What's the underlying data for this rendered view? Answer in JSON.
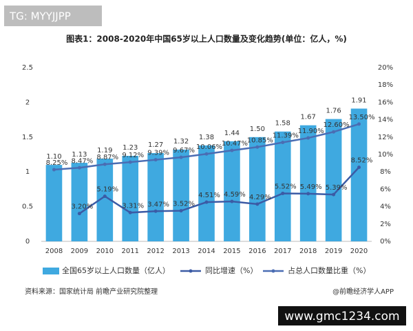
{
  "watermark": "TG: MYYJJPP",
  "source": "资料来源：国家统计局 前瞻产业研究院整理",
  "credit": "@前瞻经济学人APP",
  "site": "www.gmc1234.com",
  "chart_data": {
    "type": "bar-line",
    "title": "图表1：2008-2020年中国65岁以上人口数量及变化趋势(单位：亿人，%)",
    "categories": [
      "2008",
      "2009",
      "2010",
      "2011",
      "2012",
      "2013",
      "2014",
      "2015",
      "2016",
      "2017",
      "2018",
      "2019",
      "2020"
    ],
    "series": [
      {
        "name": "全国65岁以上人口数量（亿人）",
        "type": "bar",
        "color": "#3fa9e0",
        "values": [
          1.1,
          1.13,
          1.19,
          1.23,
          1.27,
          1.32,
          1.38,
          1.44,
          1.5,
          1.58,
          1.67,
          1.76,
          1.91
        ],
        "value_labels": [
          "1.10",
          "1.13",
          "1.19",
          "1.23",
          "1.27",
          "1.32",
          "1.38",
          "1.44",
          "1.50",
          "1.58",
          "1.67",
          "1.76",
          "1.91"
        ]
      },
      {
        "name": "同比增速（%）",
        "type": "line",
        "axis": "y2",
        "color": "#3b5ba5",
        "values": [
          null,
          3.2,
          5.19,
          3.31,
          3.47,
          3.52,
          4.51,
          4.59,
          4.29,
          5.52,
          5.49,
          5.39,
          8.52
        ],
        "value_labels": [
          null,
          "3.20%",
          "5.19%",
          "3.31%",
          "3.47%",
          "3.52%",
          "4.51%",
          "4.59%",
          "4.29%",
          "5.52%",
          "5.49%",
          "5.39%",
          "8.52%"
        ]
      },
      {
        "name": "占总人口数量比重（%）",
        "type": "line",
        "axis": "y2",
        "color": "#4a6db3",
        "values": [
          8.25,
          8.47,
          8.87,
          9.12,
          9.39,
          9.67,
          10.06,
          10.47,
          10.85,
          11.39,
          11.9,
          12.6,
          13.5
        ],
        "value_labels": [
          "8.25%",
          "8.47%",
          "8.87%",
          "9.12%",
          "9.39%",
          "9.67%",
          "10.06%",
          "10.47%",
          "10.85%",
          "11.39%",
          "11.90%",
          "12.60%",
          "13.50%"
        ]
      }
    ],
    "ylim": [
      0,
      2.5
    ],
    "yticks": [
      0,
      0.5,
      1,
      1.5,
      2,
      2.5
    ],
    "y2lim": [
      0,
      20
    ],
    "y2ticks": [
      {
        "value": 0,
        "label": "0%"
      },
      {
        "value": 2,
        "label": "2%"
      },
      {
        "value": 4,
        "label": "4%"
      },
      {
        "value": 6,
        "label": "6%"
      },
      {
        "value": 8,
        "label": "8%"
      },
      {
        "value": 10,
        "label": "10%"
      },
      {
        "value": 12,
        "label": "12%"
      },
      {
        "value": 14,
        "label": "14%"
      },
      {
        "value": 16,
        "label": "16%"
      },
      {
        "value": 18,
        "label": "18%"
      },
      {
        "value": 20,
        "label": "20%"
      }
    ],
    "grid": false,
    "legend": "bottom"
  }
}
